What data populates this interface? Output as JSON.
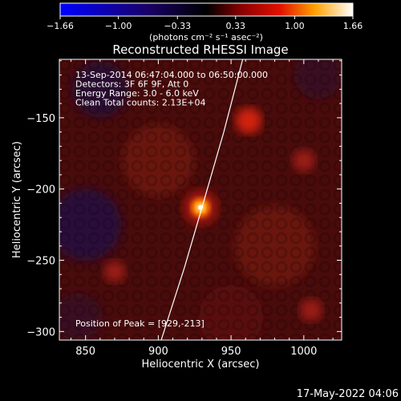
{
  "chart_data": {
    "type": "heatmap",
    "title": "Reconstructed RHESSI Image",
    "xlabel": "Heliocentric X (arcsec)",
    "ylabel": "Heliocentric Y (arcsec)",
    "xlim": [
      832,
      1026
    ],
    "ylim": [
      -306,
      -109
    ],
    "x_ticks": [
      850,
      900,
      950,
      1000
    ],
    "y_ticks": [
      -150,
      -200,
      -250,
      -300
    ],
    "x_tick_labels": [
      "850",
      "900",
      "950",
      "1000"
    ],
    "y_tick_labels": [
      "-150",
      "-200",
      "-250",
      "-300"
    ],
    "colorbar": {
      "range": [
        -1.66,
        1.66
      ],
      "ticks": [
        -1.66,
        -1.0,
        -0.33,
        0.33,
        1.0,
        1.66
      ],
      "tick_labels": [
        "-1.66",
        "-1.00",
        "-0.33",
        "0.33",
        "1.00",
        "1.66"
      ],
      "unit_label": "(photons cm⁻² s⁻¹ asec⁻²)",
      "colormap": "blue-black-red-yellow-white"
    },
    "annotations": [
      "13-Sep-2014 06:47:04.000 to 06:50:00.000",
      "Detectors: 3F 6F 9F, Att 0",
      "Energy Range: 3.0 - 6.0 keV",
      "Clean    Total counts: 2.13E+04"
    ],
    "peak_label": "Position of Peak = [929,-213]",
    "peak": {
      "x": 929,
      "y": -213,
      "value": 1.66
    },
    "sources": [
      {
        "x": 929,
        "y": -213,
        "value": 1.66
      },
      {
        "x": 962,
        "y": -152,
        "value": 0.55
      },
      {
        "x": 1000,
        "y": -180,
        "value": 0.35
      },
      {
        "x": 870,
        "y": -258,
        "value": 0.3
      },
      {
        "x": 1005,
        "y": -285,
        "value": 0.35
      }
    ],
    "limb_curve": [
      {
        "x": 902,
        "y": -306
      },
      {
        "x": 918,
        "y": -255
      },
      {
        "x": 930,
        "y": -213
      },
      {
        "x": 945,
        "y": -160
      },
      {
        "x": 958,
        "y": -109
      }
    ]
  },
  "footer": {
    "timestamp": "17-May-2022 04:06"
  }
}
